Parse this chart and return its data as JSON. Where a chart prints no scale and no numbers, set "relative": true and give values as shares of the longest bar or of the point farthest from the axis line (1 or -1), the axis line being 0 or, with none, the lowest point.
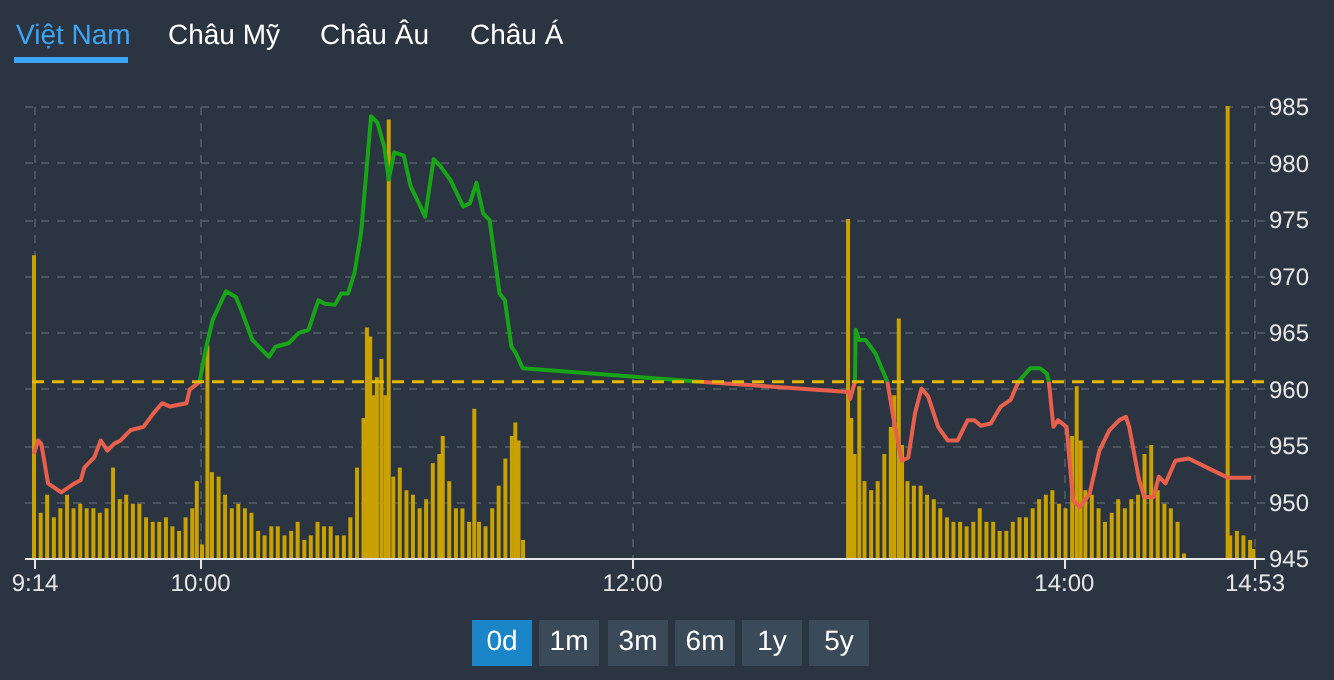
{
  "chart_data": [
    {
      "type": "line",
      "annotations": [
        "Việt Nam",
        "Châu Mỹ",
        "Châu Âu",
        "Châu Á",
        "0d",
        "1m",
        "3m",
        "6m",
        "1y",
        "5y"
      ],
      "x": [
        9.233,
        9.252,
        9.267,
        9.298,
        9.359,
        9.42,
        9.45,
        9.466,
        9.512,
        9.542,
        9.573,
        9.603,
        9.634,
        9.679,
        9.74,
        9.786,
        9.826,
        9.863,
        9.939,
        9.954,
        10.0,
        10.031,
        10.061,
        10.122,
        10.168,
        10.198,
        10.244,
        10.29,
        10.321,
        10.351,
        10.412,
        10.458,
        10.504,
        10.55,
        10.58,
        10.626,
        10.656,
        10.687,
        10.717,
        10.748,
        10.794,
        10.824,
        10.855,
        10.876,
        10.901,
        10.946,
        10.977,
        11.023,
        11.044,
        11.084,
        11.114,
        11.16,
        11.221,
        11.252,
        11.282,
        11.313,
        11.343,
        11.389,
        11.414,
        11.444,
        11.465,
        11.496,
        12.317,
        13.007,
        13.013,
        13.032,
        13.035,
        13.038,
        13.053,
        13.084,
        13.13,
        13.185,
        13.215,
        13.252,
        13.282,
        13.313,
        13.343,
        13.374,
        13.42,
        13.465,
        13.511,
        13.557,
        13.588,
        13.618,
        13.664,
        13.71,
        13.756,
        13.792,
        13.847,
        13.893,
        13.924,
        13.933,
        13.954,
        13.975,
        14.015,
        14.045,
        14.076,
        14.122,
        14.167,
        14.213,
        14.259,
        14.29,
        14.305,
        14.351,
        14.375,
        14.418,
        14.442,
        14.473,
        14.519,
        14.58,
        14.687,
        14.763,
        14.87
      ],
      "series": [
        {
          "color": "#17a417",
          "values": [
            null,
            null,
            null,
            null,
            null,
            null,
            null,
            null,
            null,
            null,
            null,
            null,
            null,
            null,
            null,
            null,
            null,
            null,
            null,
            null,
            960.6,
            963.7,
            966.1,
            968.6,
            968.1,
            966.7,
            964.3,
            963.4,
            962.8,
            963.7,
            964.0,
            964.9,
            965.2,
            967.8,
            967.5,
            967.4,
            968.4,
            968.4,
            970.2,
            973.8,
            984.1,
            983.5,
            981.4,
            978.5,
            980.9,
            980.6,
            977.9,
            976.1,
            975.2,
            980.3,
            979.7,
            978.5,
            976.1,
            976.4,
            978.2,
            975.5,
            974.9,
            968.4,
            967.8,
            963.7,
            963.1,
            961.8,
            960.6,
            null,
            null,
            null,
            960.6,
            965.2,
            964.3,
            964.3,
            963.1,
            960.6,
            null,
            null,
            null,
            null,
            null,
            null,
            null,
            null,
            null,
            null,
            null,
            null,
            null,
            null,
            null,
            960.6,
            961.8,
            961.8,
            961.3,
            960.6,
            null,
            null,
            null,
            null,
            null,
            null,
            null,
            null,
            null,
            null,
            null,
            null,
            null,
            null,
            null,
            null,
            null,
            null,
            null,
            null,
            null
          ]
        },
        {
          "color": "#e8604c",
          "values": [
            954.2,
            955.4,
            955.1,
            951.6,
            950.8,
            951.6,
            951.9,
            953.0,
            953.9,
            955.4,
            954.5,
            955.1,
            955.4,
            956.3,
            956.6,
            957.8,
            958.7,
            958.4,
            958.7,
            959.9,
            960.6,
            null,
            null,
            null,
            null,
            null,
            null,
            null,
            null,
            null,
            null,
            null,
            null,
            null,
            null,
            null,
            null,
            null,
            null,
            null,
            null,
            null,
            null,
            null,
            null,
            null,
            null,
            null,
            null,
            null,
            null,
            null,
            null,
            null,
            null,
            null,
            null,
            null,
            null,
            null,
            null,
            null,
            960.6,
            959.7,
            959.1,
            960.4,
            960.6,
            null,
            null,
            null,
            null,
            960.6,
            957.2,
            953.6,
            953.9,
            957.8,
            960.0,
            959.3,
            956.6,
            955.4,
            955.4,
            957.2,
            957.2,
            956.7,
            956.9,
            958.4,
            959.0,
            960.6,
            null,
            null,
            null,
            960.6,
            956.6,
            957.2,
            956.6,
            950.1,
            949.5,
            950.7,
            954.5,
            956.3,
            957.2,
            957.5,
            956.6,
            951.9,
            950.4,
            950.4,
            952.2,
            951.6,
            953.6,
            953.8,
            952.8,
            952.1,
            952.1
          ]
        }
      ],
      "xlim": [
        9.233,
        14.883
      ],
      "tick_labels": "y",
      "ylim": [
        945,
        985
      ],
      "yticks": [
        945,
        950,
        955,
        960,
        965,
        970,
        975,
        980,
        985
      ],
      "ref_lines": [
        {
          "axis": "y",
          "value": 960.6,
          "color": "#e6b800",
          "line_style": "dashed"
        }
      ],
      "grid": true
    },
    {
      "type": "bar",
      "relative": true,
      "color": "#c9a100",
      "xlim": [
        9.233,
        14.883
      ],
      "xticks": [
        {
          "value": 9.233,
          "label": "9:14"
        },
        {
          "value": 10,
          "label": "10:00"
        },
        {
          "value": 12,
          "label": "12:00"
        },
        {
          "value": 14,
          "label": "14:00"
        },
        {
          "value": 14.883,
          "label": "14:53"
        }
      ],
      "x": [
        9.233,
        9.264,
        9.294,
        9.325,
        9.355,
        9.386,
        9.416,
        9.447,
        9.477,
        9.508,
        9.538,
        9.569,
        9.599,
        9.63,
        9.66,
        9.691,
        9.721,
        9.752,
        9.783,
        9.813,
        9.844,
        9.874,
        9.905,
        9.935,
        9.966,
        9.987,
        10.011,
        10.036,
        10.057,
        10.088,
        10.118,
        10.149,
        10.179,
        10.21,
        10.24,
        10.271,
        10.301,
        10.332,
        10.362,
        10.393,
        10.424,
        10.454,
        10.485,
        10.515,
        10.546,
        10.576,
        10.607,
        10.637,
        10.668,
        10.698,
        10.729,
        10.759,
        10.775,
        10.79,
        10.805,
        10.821,
        10.842,
        10.86,
        10.876,
        10.897,
        10.927,
        10.958,
        10.988,
        11.019,
        11.049,
        11.08,
        11.11,
        11.126,
        11.156,
        11.187,
        11.217,
        11.248,
        11.272,
        11.294,
        11.324,
        11.355,
        11.385,
        11.416,
        11.446,
        11.462,
        11.477,
        11.498,
        13.003,
        13.018,
        13.033,
        13.055,
        13.079,
        13.11,
        13.14,
        13.171,
        13.201,
        13.217,
        13.238,
        13.253,
        13.278,
        13.308,
        13.339,
        13.369,
        13.4,
        13.43,
        13.461,
        13.491,
        13.522,
        13.552,
        13.583,
        13.613,
        13.644,
        13.675,
        13.705,
        13.736,
        13.766,
        13.797,
        13.827,
        13.858,
        13.888,
        13.919,
        13.949,
        13.98,
        14.01,
        14.041,
        14.062,
        14.08,
        14.102,
        14.132,
        14.163,
        14.193,
        14.224,
        14.254,
        14.285,
        14.315,
        14.346,
        14.376,
        14.407,
        14.437,
        14.468,
        14.498,
        14.529,
        14.559,
        14.761,
        14.773,
        14.804,
        14.834,
        14.865,
        14.88
      ],
      "values": [
        0.67,
        0.1,
        0.14,
        0.09,
        0.11,
        0.14,
        0.11,
        0.12,
        0.11,
        0.11,
        0.1,
        0.11,
        0.2,
        0.13,
        0.14,
        0.12,
        0.12,
        0.09,
        0.08,
        0.08,
        0.09,
        0.07,
        0.06,
        0.09,
        0.11,
        0.17,
        0.03,
        0.47,
        0.19,
        0.18,
        0.14,
        0.11,
        0.12,
        0.11,
        0.1,
        0.06,
        0.05,
        0.07,
        0.07,
        0.05,
        0.06,
        0.08,
        0.04,
        0.05,
        0.08,
        0.07,
        0.07,
        0.05,
        0.05,
        0.09,
        0.2,
        0.31,
        0.51,
        0.49,
        0.36,
        0.4,
        0.44,
        0.36,
        0.97,
        0.18,
        0.2,
        0.15,
        0.14,
        0.11,
        0.13,
        0.21,
        0.23,
        0.27,
        0.17,
        0.11,
        0.11,
        0.08,
        0.33,
        0.08,
        0.07,
        0.11,
        0.16,
        0.22,
        0.27,
        0.3,
        0.26,
        0.04,
        0.75,
        0.31,
        0.23,
        0.38,
        0.17,
        0.15,
        0.17,
        0.23,
        0.29,
        0.36,
        0.53,
        0.25,
        0.17,
        0.16,
        0.16,
        0.14,
        0.13,
        0.11,
        0.09,
        0.08,
        0.08,
        0.07,
        0.08,
        0.11,
        0.08,
        0.08,
        0.06,
        0.06,
        0.08,
        0.09,
        0.09,
        0.11,
        0.13,
        0.14,
        0.15,
        0.12,
        0.11,
        0.27,
        0.38,
        0.26,
        0.15,
        0.14,
        0.11,
        0.08,
        0.1,
        0.13,
        0.11,
        0.13,
        0.14,
        0.23,
        0.25,
        0.15,
        0.12,
        0.11,
        0.08,
        0.01,
        1,
        0.05,
        0.06,
        0.05,
        0.04,
        0.02
      ]
    }
  ]
}
